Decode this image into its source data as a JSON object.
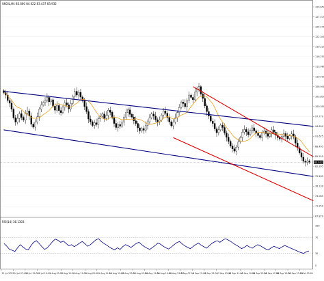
{
  "chart_data": {
    "type": "candlestick",
    "symbol_header": "UKOIL,H4  83.660 84.022 83.437 83.932",
    "symbol_header_color": "#000000",
    "current_price_label": "83.932",
    "current_price": 83.93,
    "price_axis": {
      "ylim": [
        68.0,
        129.9
      ],
      "ticks": [
        "129.650",
        "127.570",
        "125.445",
        "122.345",
        "119.220",
        "116.255",
        "113.080",
        "110.405",
        "106.940",
        "103.850",
        "100.300",
        "97.770",
        "94.690",
        "91.625",
        "88.495",
        "85.555",
        "82.395",
        "79.265",
        "76.130",
        "73.065",
        "71.250",
        "67.870"
      ]
    },
    "time_axis": {
      "labels": [
        "21 Jul 2022",
        "24 Jul 07:00",
        "26 Jul 15:00",
        "28 Jul 19:00",
        "1 Aug 03:00",
        "3 Aug 11:00",
        "5 Aug 15:00",
        "9 Aug 03:00",
        "11 Aug 11:00",
        "15 Aug 15:00",
        "17 Aug 23:00",
        "22 Aug 03:00",
        "24 Aug 11:00",
        "26 Aug 19:00",
        "30 Aug 23:00",
        "2 Sep 07:00",
        "6 Sep 15:00",
        "8 Sep 23:00",
        "13 Sep 03:00",
        "15 Sep 11:00",
        "19 Sep 19:00",
        "21 Sep 23:00",
        "26 Sep 07:00",
        "28 Sep 15:00",
        "30 Sep 23:00",
        "5 Oct 03:00"
      ]
    },
    "close_prices": [
      104.5,
      103.8,
      102.2,
      101.4,
      99.6,
      97.1,
      95.8,
      96.9,
      98.3,
      97.2,
      96.4,
      98.5,
      99.1,
      97.6,
      95.2,
      94.3,
      95.8,
      97.4,
      99.6,
      100.9,
      101.6,
      102.3,
      103.1,
      101.8,
      102.4,
      100.5,
      99.3,
      100.7,
      99.2,
      98.6,
      100.2,
      101.5,
      100.9,
      99.7,
      101.3,
      103.4,
      104.9,
      103.8,
      104.6,
      103.2,
      102.1,
      100.4,
      98.9,
      96.7,
      95.9,
      94.8,
      95.6,
      95.1,
      96.8,
      97.5,
      98.2,
      96.9,
      97.8,
      99.3,
      98.7,
      97.1,
      95.4,
      94.2,
      95.1,
      94.6,
      95.8,
      97.3,
      98.6,
      99.4,
      98.1,
      97.3,
      96.2,
      95.4,
      94.1,
      93.2,
      93.9,
      93.4,
      94.8,
      95.9,
      97.1,
      98.2,
      97.6,
      96.5,
      95.8,
      96.4,
      97.9,
      99.1,
      98.4,
      97.2,
      95.9,
      94.7,
      95.8,
      97.1,
      98.6,
      100.1,
      101.7,
      101.3,
      100.4,
      102.2,
      103.8,
      103.1,
      102.4,
      104.7,
      105.6,
      106.3,
      104.1,
      102.8,
      100.6,
      98.9,
      97.6,
      96.1,
      95.4,
      93.8,
      92.7,
      93.5,
      94.9,
      94.2,
      92.6,
      91.3,
      90.1,
      88.7,
      87.9,
      87.2,
      88.4,
      89.9,
      91.2,
      92.8,
      93.6,
      92.9,
      92.1,
      93.4,
      94.1,
      93.2,
      92.5,
      91.8,
      91.2,
      92.6,
      93.1,
      92.4,
      91.6,
      92.3,
      93.5,
      92.8,
      91.9,
      91.2,
      90.8,
      91.5,
      92.4,
      91.6,
      90.9,
      91.7,
      92.3,
      91.4,
      89.6,
      88.2,
      86.7,
      85.4,
      84.2,
      83.9,
      84.3,
      83.9
    ],
    "ma_color": "#e8a020",
    "rsi": {
      "label": "RSI(14) 36.1303",
      "ylim": [
        0,
        100
      ],
      "ticks": [
        "100",
        "70",
        "30",
        "0"
      ],
      "values": [
        55,
        48,
        40,
        38,
        35,
        44,
        52,
        46,
        41,
        39,
        50,
        58,
        62,
        55,
        47,
        40,
        44,
        52,
        60,
        66,
        63,
        58,
        61,
        55,
        49,
        52,
        47,
        51,
        56,
        60,
        54,
        48,
        52,
        58,
        64,
        67,
        60,
        55,
        51,
        46,
        42,
        39,
        44,
        40,
        47,
        52,
        49,
        45,
        50,
        55,
        58,
        52,
        47,
        43,
        40,
        45,
        50,
        56,
        53,
        48,
        44,
        41,
        46,
        52,
        57,
        60,
        54,
        49,
        45,
        42,
        47,
        52,
        56,
        51,
        47,
        43,
        49,
        55,
        59,
        62,
        58,
        63,
        67,
        64,
        60,
        55,
        51,
        47,
        42,
        45,
        50,
        46,
        43,
        48,
        52,
        49,
        45,
        41,
        39,
        44,
        48,
        45,
        42,
        46,
        50,
        47,
        44,
        41,
        38,
        35,
        32,
        30,
        34,
        36
      ],
      "color": "#000080"
    },
    "trendlines": [
      {
        "name": "outer-channel-upper",
        "color": "#000080",
        "points": [
          [
            0,
            104.9
          ],
          [
            156,
            94.6
          ]
        ]
      },
      {
        "name": "outer-channel-lower",
        "color": "#000080",
        "points": [
          [
            0,
            93.5
          ],
          [
            156,
            79.8
          ]
        ]
      },
      {
        "name": "inner-channel-upper",
        "color": "#dd0000",
        "points": [
          [
            96,
            106.3
          ],
          [
            156,
            85.9
          ]
        ]
      },
      {
        "name": "inner-channel-lower",
        "color": "#dd0000",
        "points": [
          [
            86,
            91.2
          ],
          [
            156,
            72.8
          ]
        ]
      }
    ],
    "grid": true,
    "legend": "none"
  }
}
